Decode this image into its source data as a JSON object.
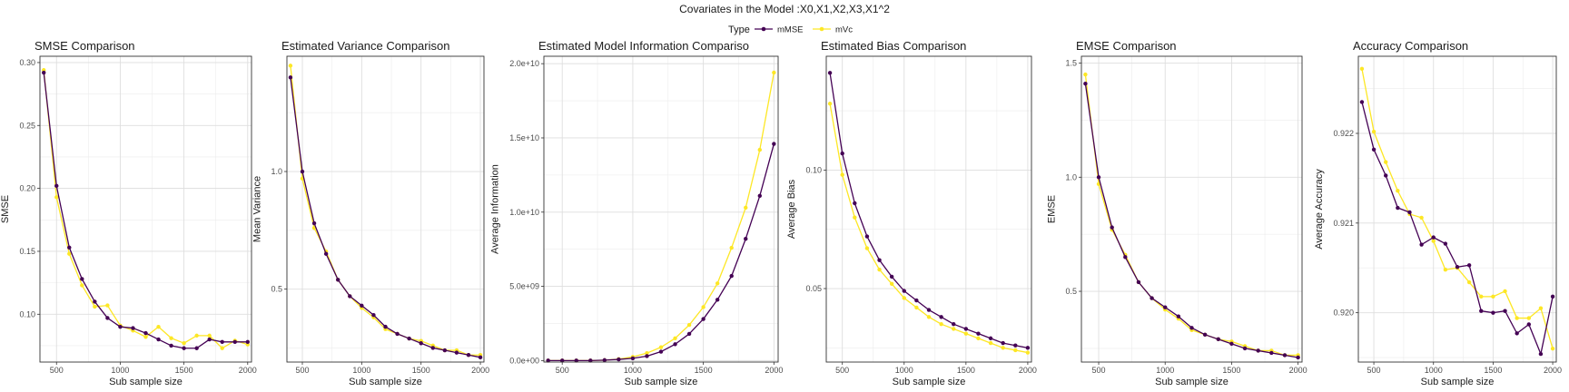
{
  "figure": {
    "title": "Covariates in the Model :X0,X1,X2,X3,X1^2",
    "legend": {
      "title": "Type",
      "position": "top-center"
    }
  },
  "colors": {
    "mMSE": "#440154",
    "mVc": "#FDE725",
    "grid": "#dedede",
    "panel_border": "#333333"
  },
  "chart_data": [
    {
      "type": "line",
      "title": "SMSE Comparison",
      "xlabel": "Sub sample size",
      "ylabel": "SMSE",
      "xlim": [
        370,
        2030
      ],
      "ylim": [
        0.062,
        0.305
      ],
      "xticks": [
        500,
        1000,
        1500,
        2000
      ],
      "xtick_labels": [
        "500",
        "1000",
        "1500",
        "2000"
      ],
      "yticks": [
        0.1,
        0.15,
        0.2,
        0.25,
        0.3
      ],
      "ytick_labels": [
        "0.10",
        "0.15",
        "0.20",
        "0.25",
        "0.30"
      ],
      "grid": true,
      "x": [
        400,
        500,
        600,
        700,
        800,
        900,
        1000,
        1100,
        1200,
        1300,
        1400,
        1500,
        1600,
        1700,
        1800,
        1900,
        2000
      ],
      "series": [
        {
          "name": "mMSE",
          "values": [
            0.292,
            0.202,
            0.153,
            0.128,
            0.11,
            0.097,
            0.09,
            0.089,
            0.085,
            0.08,
            0.075,
            0.073,
            0.073,
            0.08,
            0.078,
            0.078,
            0.078
          ]
        },
        {
          "name": "mVc",
          "values": [
            0.294,
            0.193,
            0.148,
            0.123,
            0.106,
            0.107,
            0.091,
            0.087,
            0.082,
            0.09,
            0.081,
            0.077,
            0.083,
            0.083,
            0.073,
            0.079,
            0.076
          ]
        }
      ]
    },
    {
      "type": "line",
      "title": "Estimated Variance Comparison",
      "xlabel": "Sub sample size",
      "ylabel": "Mean Variance",
      "xlim": [
        370,
        2030
      ],
      "ylim": [
        0.19,
        1.49
      ],
      "xticks": [
        500,
        1000,
        1500,
        2000
      ],
      "xtick_labels": [
        "500",
        "1000",
        "1500",
        "2000"
      ],
      "yticks": [
        0.5,
        1.0
      ],
      "ytick_labels": [
        "0.5",
        "1.0"
      ],
      "grid": true,
      "x": [
        400,
        500,
        600,
        700,
        800,
        900,
        1000,
        1100,
        1200,
        1300,
        1400,
        1500,
        1600,
        1700,
        1800,
        1900,
        2000
      ],
      "series": [
        {
          "name": "mMSE",
          "values": [
            1.4,
            1.0,
            0.78,
            0.65,
            0.54,
            0.47,
            0.43,
            0.39,
            0.34,
            0.31,
            0.29,
            0.27,
            0.25,
            0.24,
            0.23,
            0.22,
            0.21
          ]
        },
        {
          "name": "mVc",
          "values": [
            1.45,
            0.97,
            0.76,
            0.66,
            0.54,
            0.47,
            0.42,
            0.38,
            0.33,
            0.31,
            0.29,
            0.28,
            0.26,
            0.24,
            0.24,
            0.22,
            0.22
          ]
        }
      ]
    },
    {
      "type": "line",
      "title": "Estimated Model Information Compariso",
      "xlabel": "Sub sample size",
      "ylabel": "Average Information",
      "xlim": [
        370,
        2030
      ],
      "ylim": [
        -100000000.0,
        20500000000.0
      ],
      "xticks": [
        500,
        1000,
        1500,
        2000
      ],
      "xtick_labels": [
        "500",
        "1000",
        "1500",
        "2000"
      ],
      "yticks": [
        0,
        5000000000.0,
        10000000000.0,
        15000000000.0,
        20000000000.0
      ],
      "ytick_labels": [
        "0.0e+00",
        "5.0e+09",
        "1.0e+10",
        "1.5e+10",
        "2.0e+10"
      ],
      "grid": true,
      "x": [
        400,
        500,
        600,
        700,
        800,
        900,
        1000,
        1100,
        1200,
        1300,
        1400,
        1500,
        1600,
        1700,
        1800,
        1900,
        2000
      ],
      "series": [
        {
          "name": "mMSE",
          "values": [
            0.0,
            0.0,
            0.0,
            0.0,
            30000000.0,
            80000000.0,
            150000000.0,
            300000000.0,
            600000000.0,
            1100000000.0,
            1800000000.0,
            2800000000.0,
            4100000000.0,
            5700000000.0,
            8200000000.0,
            11100000000.0,
            14600000000.0
          ]
        },
        {
          "name": "mVc",
          "values": [
            0.0,
            0.0,
            0.0,
            0.0,
            30000000.0,
            100000000.0,
            250000000.0,
            500000000.0,
            900000000.0,
            1500000000.0,
            2400000000.0,
            3600000000.0,
            5200000000.0,
            7600000000.0,
            10300000000.0,
            14200000000.0,
            19400000000.0
          ]
        }
      ]
    },
    {
      "type": "line",
      "title": "Estimated Bias Comparison",
      "xlabel": "Sub sample size",
      "ylabel": "Average Bias",
      "xlim": [
        370,
        2030
      ],
      "ylim": [
        0.019,
        0.148
      ],
      "xticks": [
        500,
        1000,
        1500,
        2000
      ],
      "xtick_labels": [
        "500",
        "1000",
        "1500",
        "2000"
      ],
      "yticks": [
        0.05,
        0.1
      ],
      "ytick_labels": [
        "0.05",
        "0.10"
      ],
      "grid": true,
      "x": [
        400,
        500,
        600,
        700,
        800,
        900,
        1000,
        1100,
        1200,
        1300,
        1400,
        1500,
        1600,
        1700,
        1800,
        1900,
        2000
      ],
      "series": [
        {
          "name": "mMSE",
          "values": [
            0.141,
            0.107,
            0.086,
            0.072,
            0.062,
            0.055,
            0.049,
            0.045,
            0.041,
            0.038,
            0.035,
            0.033,
            0.031,
            0.029,
            0.027,
            0.026,
            0.025
          ]
        },
        {
          "name": "mVc",
          "values": [
            0.128,
            0.098,
            0.08,
            0.067,
            0.058,
            0.052,
            0.046,
            0.042,
            0.038,
            0.035,
            0.033,
            0.031,
            0.029,
            0.027,
            0.025,
            0.024,
            0.023
          ]
        }
      ]
    },
    {
      "type": "line",
      "title": "EMSE Comparison",
      "xlabel": "Sub sample size",
      "ylabel": "EMSE",
      "xlim": [
        370,
        2030
      ],
      "ylim": [
        0.19,
        1.53
      ],
      "xticks": [
        500,
        1000,
        1500,
        2000
      ],
      "xtick_labels": [
        "500",
        "1000",
        "1500",
        "2000"
      ],
      "yticks": [
        0.5,
        1.0,
        1.5
      ],
      "ytick_labels": [
        "0.5",
        "1.0",
        "1.5"
      ],
      "grid": true,
      "x": [
        400,
        500,
        600,
        700,
        800,
        900,
        1000,
        1100,
        1200,
        1300,
        1400,
        1500,
        1600,
        1700,
        1800,
        1900,
        2000
      ],
      "series": [
        {
          "name": "mMSE",
          "values": [
            1.41,
            1.0,
            0.78,
            0.65,
            0.54,
            0.47,
            0.43,
            0.39,
            0.34,
            0.31,
            0.29,
            0.27,
            0.25,
            0.24,
            0.23,
            0.22,
            0.21
          ]
        },
        {
          "name": "mVc",
          "values": [
            1.45,
            0.97,
            0.77,
            0.66,
            0.54,
            0.47,
            0.42,
            0.38,
            0.33,
            0.31,
            0.29,
            0.28,
            0.26,
            0.24,
            0.24,
            0.22,
            0.22
          ]
        }
      ]
    },
    {
      "type": "line",
      "title": "Accuracy Comparison",
      "xlabel": "Sub sample size",
      "ylabel": "Average Accuracy",
      "xlim": [
        370,
        2030
      ],
      "ylim": [
        0.91945,
        0.92286
      ],
      "xticks": [
        500,
        1000,
        1500,
        2000
      ],
      "xtick_labels": [
        "500",
        "1000",
        "1500",
        "2000"
      ],
      "yticks": [
        0.92,
        0.921,
        0.922
      ],
      "ytick_labels": [
        "0.920",
        "0.921",
        "0.922"
      ],
      "grid": true,
      "x": [
        400,
        500,
        600,
        700,
        800,
        900,
        1000,
        1100,
        1200,
        1300,
        1400,
        1500,
        1600,
        1700,
        1800,
        1900,
        2000
      ],
      "series": [
        {
          "name": "mMSE",
          "values": [
            0.92235,
            0.92182,
            0.92153,
            0.92117,
            0.92112,
            0.92076,
            0.92084,
            0.92077,
            0.92051,
            0.92053,
            0.92002,
            0.92,
            0.92002,
            0.91977,
            0.91987,
            0.91954,
            0.92018
          ]
        },
        {
          "name": "mVc",
          "values": [
            0.92272,
            0.92202,
            0.92168,
            0.92136,
            0.9211,
            0.92106,
            0.9208,
            0.92048,
            0.9205,
            0.92034,
            0.92018,
            0.92018,
            0.92024,
            0.91994,
            0.91994,
            0.92005,
            0.9196
          ]
        }
      ]
    }
  ]
}
